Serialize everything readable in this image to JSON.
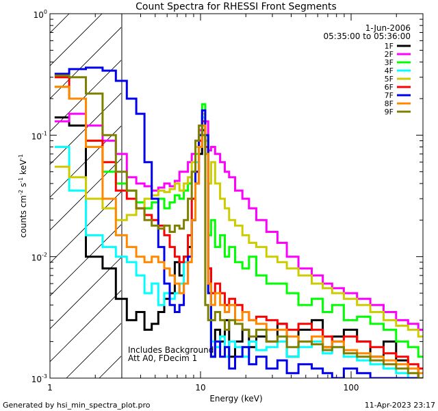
{
  "chart_data": {
    "type": "line",
    "title": "Count Spectra for RHESSI Front Segments",
    "xlabel": "Energy (keV)",
    "ylabel_main": "counts cm",
    "ylabel_exp1": "-2",
    "ylabel_mid": " s",
    "ylabel_exp2": "-1",
    "ylabel_tail": " keV",
    "ylabel_exp3": "-1",
    "xscale": "log",
    "yscale": "log",
    "xlim": [
      1,
      300
    ],
    "ylim": [
      0.001,
      1
    ],
    "x_ticks": [
      {
        "value": 1,
        "label": "1"
      },
      {
        "value": 10,
        "label": "10"
      },
      {
        "value": 100,
        "label": "100"
      }
    ],
    "y_ticks": [
      {
        "value": 1,
        "base": "10",
        "exp": "0"
      },
      {
        "value": 0.1,
        "base": "10",
        "exp": "-1"
      },
      {
        "value": 0.01,
        "base": "10",
        "exp": "-2"
      },
      {
        "value": 0.001,
        "base": "10",
        "exp": "-3"
      }
    ],
    "attenuator_cutoff_keV": 3,
    "date": "1-Jun-2006",
    "time_range": "05:35:00 to 05:36:00",
    "annotations": [
      "Includes Background",
      "Att A0, FDecim 1"
    ],
    "footer_left": "Generated by hsi_min_spectra_plot.pro",
    "footer_right": "11-Apr-2023 23:17",
    "series": [
      {
        "name": "1F",
        "color": "#000000",
        "x": [
          1.2,
          1.5,
          2,
          2.5,
          3,
          3.5,
          4,
          4.5,
          5,
          5.5,
          6,
          6.5,
          7,
          7.5,
          8,
          8.5,
          9,
          9.5,
          10,
          10.5,
          11,
          11.5,
          12,
          13,
          14,
          15,
          16,
          18,
          20,
          22,
          25,
          30,
          35,
          40,
          50,
          60,
          70,
          80,
          100,
          120,
          150,
          180,
          220,
          260,
          300
        ],
        "y": [
          0.14,
          0.12,
          0.01,
          0.008,
          0.0045,
          0.003,
          0.0035,
          0.0025,
          0.0028,
          0.0035,
          0.0045,
          0.005,
          0.009,
          0.007,
          0.01,
          0.012,
          0.02,
          0.04,
          0.07,
          0.11,
          0.09,
          0.008,
          0.0015,
          0.0025,
          0.002,
          0.003,
          0.0015,
          0.002,
          0.0025,
          0.0018,
          0.0022,
          0.002,
          0.0028,
          0.0015,
          0.0025,
          0.003,
          0.0018,
          0.0022,
          0.0025,
          0.002,
          0.0015,
          0.002,
          0.0014,
          0.0012,
          0.001
        ]
      },
      {
        "name": "2F",
        "color": "#ff00ff",
        "x": [
          1.2,
          1.5,
          2,
          2.5,
          3,
          3.5,
          4,
          4.5,
          5,
          5.5,
          6,
          6.5,
          7,
          7.5,
          8,
          8.5,
          9,
          9.5,
          10,
          10.5,
          11,
          11.5,
          12,
          13,
          14,
          15,
          16,
          18,
          20,
          22,
          25,
          30,
          35,
          40,
          50,
          60,
          70,
          80,
          100,
          120,
          150,
          180,
          220,
          260,
          300
        ],
        "y": [
          0.13,
          0.15,
          0.12,
          0.09,
          0.07,
          0.045,
          0.04,
          0.038,
          0.035,
          0.037,
          0.04,
          0.038,
          0.042,
          0.05,
          0.05,
          0.06,
          0.07,
          0.09,
          0.11,
          0.14,
          0.13,
          0.075,
          0.08,
          0.07,
          0.06,
          0.05,
          0.045,
          0.035,
          0.03,
          0.025,
          0.02,
          0.016,
          0.013,
          0.01,
          0.008,
          0.007,
          0.006,
          0.0055,
          0.005,
          0.0045,
          0.004,
          0.0035,
          0.003,
          0.0028,
          0.0025
        ]
      },
      {
        "name": "3F",
        "color": "#00ff00",
        "x": [
          1.2,
          1.5,
          2,
          2.5,
          3,
          3.5,
          4,
          4.5,
          5,
          5.5,
          6,
          6.5,
          7,
          7.5,
          8,
          8.5,
          9,
          9.5,
          10,
          10.5,
          11,
          11.5,
          12,
          13,
          14,
          15,
          16,
          18,
          20,
          22,
          25,
          30,
          35,
          40,
          50,
          60,
          70,
          80,
          100,
          120,
          150,
          180,
          220,
          260,
          300
        ],
        "y": [
          0.25,
          0.2,
          0.09,
          0.05,
          0.04,
          0.035,
          0.028,
          0.025,
          0.028,
          0.03,
          0.025,
          0.028,
          0.032,
          0.03,
          0.035,
          0.04,
          0.05,
          0.07,
          0.1,
          0.18,
          0.1,
          0.015,
          0.02,
          0.012,
          0.015,
          0.01,
          0.012,
          0.009,
          0.008,
          0.01,
          0.007,
          0.006,
          0.006,
          0.005,
          0.004,
          0.0045,
          0.0035,
          0.004,
          0.003,
          0.0032,
          0.0028,
          0.0025,
          0.002,
          0.0018,
          0.0015
        ]
      },
      {
        "name": "4F",
        "color": "#00ffff",
        "x": [
          1.2,
          1.5,
          2,
          2.5,
          3,
          3.5,
          4,
          4.5,
          5,
          5.5,
          6,
          6.5,
          7,
          7.5,
          8,
          8.5,
          9,
          9.5,
          10,
          10.5,
          11,
          11.5,
          12,
          13,
          14,
          15,
          16,
          18,
          20,
          22,
          25,
          30,
          35,
          40,
          50,
          60,
          70,
          80,
          100,
          120,
          150,
          180,
          220,
          260,
          300
        ],
        "y": [
          0.08,
          0.035,
          0.015,
          0.012,
          0.01,
          0.009,
          0.007,
          0.005,
          0.006,
          0.004,
          0.005,
          0.0045,
          0.005,
          0.006,
          0.009,
          0.015,
          0.03,
          0.06,
          0.1,
          0.14,
          0.08,
          0.005,
          0.002,
          0.0018,
          0.0022,
          0.0015,
          0.002,
          0.0018,
          0.0015,
          0.002,
          0.0017,
          0.0018,
          0.002,
          0.0015,
          0.0018,
          0.002,
          0.0016,
          0.0018,
          0.0015,
          0.0014,
          0.0013,
          0.0012,
          0.0011,
          0.001,
          0.001
        ]
      },
      {
        "name": "5F",
        "color": "#cccc00",
        "x": [
          1.2,
          1.5,
          2,
          2.5,
          3,
          3.5,
          4,
          4.5,
          5,
          5.5,
          6,
          6.5,
          7,
          7.5,
          8,
          8.5,
          9,
          9.5,
          10,
          10.5,
          11,
          11.5,
          12,
          13,
          14,
          15,
          16,
          18,
          20,
          22,
          25,
          30,
          35,
          40,
          50,
          60,
          70,
          80,
          100,
          120,
          150,
          180,
          220,
          260,
          300
        ],
        "y": [
          0.055,
          0.045,
          0.03,
          0.025,
          0.02,
          0.022,
          0.025,
          0.03,
          0.032,
          0.035,
          0.034,
          0.036,
          0.04,
          0.035,
          0.04,
          0.045,
          0.06,
          0.08,
          0.1,
          0.15,
          0.09,
          0.04,
          0.06,
          0.04,
          0.03,
          0.025,
          0.02,
          0.018,
          0.015,
          0.013,
          0.012,
          0.01,
          0.009,
          0.008,
          0.007,
          0.006,
          0.0055,
          0.005,
          0.0045,
          0.004,
          0.0035,
          0.003,
          0.0027,
          0.0025,
          0.0022
        ]
      },
      {
        "name": "6F",
        "color": "#ff0000",
        "x": [
          1.2,
          1.5,
          2,
          2.5,
          3,
          3.5,
          4,
          4.5,
          5,
          5.5,
          6,
          6.5,
          7,
          7.5,
          8,
          8.5,
          9,
          9.5,
          10,
          10.5,
          11,
          11.5,
          12,
          13,
          14,
          15,
          16,
          18,
          20,
          22,
          25,
          30,
          35,
          40,
          50,
          60,
          70,
          80,
          100,
          120,
          150,
          180,
          220,
          260,
          300
        ],
        "y": [
          0.3,
          0.2,
          0.09,
          0.06,
          0.035,
          0.03,
          0.025,
          0.022,
          0.02,
          0.018,
          0.015,
          0.012,
          0.01,
          0.009,
          0.01,
          0.015,
          0.03,
          0.05,
          0.09,
          0.13,
          0.08,
          0.008,
          0.005,
          0.006,
          0.005,
          0.004,
          0.0045,
          0.004,
          0.0035,
          0.003,
          0.0032,
          0.003,
          0.0028,
          0.0025,
          0.0028,
          0.0025,
          0.0022,
          0.002,
          0.0022,
          0.002,
          0.0018,
          0.0016,
          0.0015,
          0.0013,
          0.0012
        ]
      },
      {
        "name": "7F",
        "color": "#0000ee",
        "x": [
          1.2,
          1.5,
          2,
          2.5,
          3,
          3.5,
          4,
          4.5,
          5,
          5.5,
          6,
          6.5,
          7,
          7.5,
          8,
          8.5,
          9,
          9.5,
          10,
          10.5,
          11,
          11.5,
          12,
          13,
          14,
          15,
          16,
          18,
          20,
          22,
          25,
          30,
          35,
          40,
          50,
          60,
          70,
          80,
          100,
          120,
          150,
          180,
          220,
          260,
          300
        ],
        "y": [
          0.32,
          0.35,
          0.36,
          0.34,
          0.28,
          0.2,
          0.15,
          0.06,
          0.03,
          0.012,
          0.006,
          0.004,
          0.0035,
          0.004,
          0.006,
          0.01,
          0.02,
          0.05,
          0.1,
          0.16,
          0.1,
          0.005,
          0.0015,
          0.002,
          0.0015,
          0.0018,
          0.0012,
          0.0015,
          0.0018,
          0.0013,
          0.0015,
          0.0012,
          0.0014,
          0.0011,
          0.0013,
          0.0012,
          0.0011,
          0.001,
          0.0012,
          0.0011,
          0.001,
          0.001,
          0.001,
          0.001,
          0.001
        ]
      },
      {
        "name": "8F",
        "color": "#ff8800",
        "x": [
          1.2,
          1.5,
          2,
          2.5,
          3,
          3.5,
          4,
          4.5,
          5,
          5.5,
          6,
          6.5,
          7,
          7.5,
          8,
          8.5,
          9,
          9.5,
          10,
          10.5,
          11,
          11.5,
          12,
          13,
          14,
          15,
          16,
          18,
          20,
          22,
          25,
          30,
          35,
          40,
          50,
          60,
          70,
          80,
          100,
          120,
          150,
          180,
          220,
          260,
          300
        ],
        "y": [
          0.25,
          0.2,
          0.08,
          0.03,
          0.015,
          0.012,
          0.01,
          0.009,
          0.01,
          0.009,
          0.008,
          0.007,
          0.006,
          0.005,
          0.006,
          0.009,
          0.02,
          0.04,
          0.08,
          0.12,
          0.07,
          0.006,
          0.004,
          0.005,
          0.004,
          0.0035,
          0.004,
          0.003,
          0.0035,
          0.003,
          0.0028,
          0.0025,
          0.0025,
          0.0022,
          0.002,
          0.0022,
          0.0018,
          0.002,
          0.0017,
          0.0016,
          0.0015,
          0.0014,
          0.0013,
          0.0012,
          0.0011
        ]
      },
      {
        "name": "9F",
        "color": "#808000",
        "x": [
          1.2,
          1.5,
          2,
          2.5,
          3,
          3.5,
          4,
          4.5,
          5,
          5.5,
          6,
          6.5,
          7,
          7.5,
          8,
          8.5,
          9,
          9.5,
          10,
          10.5,
          11,
          11.5,
          12,
          13,
          14,
          15,
          16,
          18,
          20,
          22,
          25,
          30,
          35,
          40,
          50,
          60,
          70,
          80,
          100,
          120,
          150,
          180,
          220,
          260,
          300
        ],
        "y": [
          0.31,
          0.3,
          0.22,
          0.1,
          0.05,
          0.035,
          0.025,
          0.02,
          0.018,
          0.017,
          0.018,
          0.016,
          0.018,
          0.017,
          0.02,
          0.03,
          0.05,
          0.09,
          0.12,
          0.1,
          0.004,
          0.003,
          0.003,
          0.0035,
          0.003,
          0.0025,
          0.003,
          0.0028,
          0.0025,
          0.0022,
          0.0025,
          0.002,
          0.0022,
          0.0018,
          0.002,
          0.0019,
          0.0017,
          0.0018,
          0.0016,
          0.0015,
          0.0014,
          0.0013,
          0.0012,
          0.0011,
          0.001
        ]
      }
    ]
  }
}
